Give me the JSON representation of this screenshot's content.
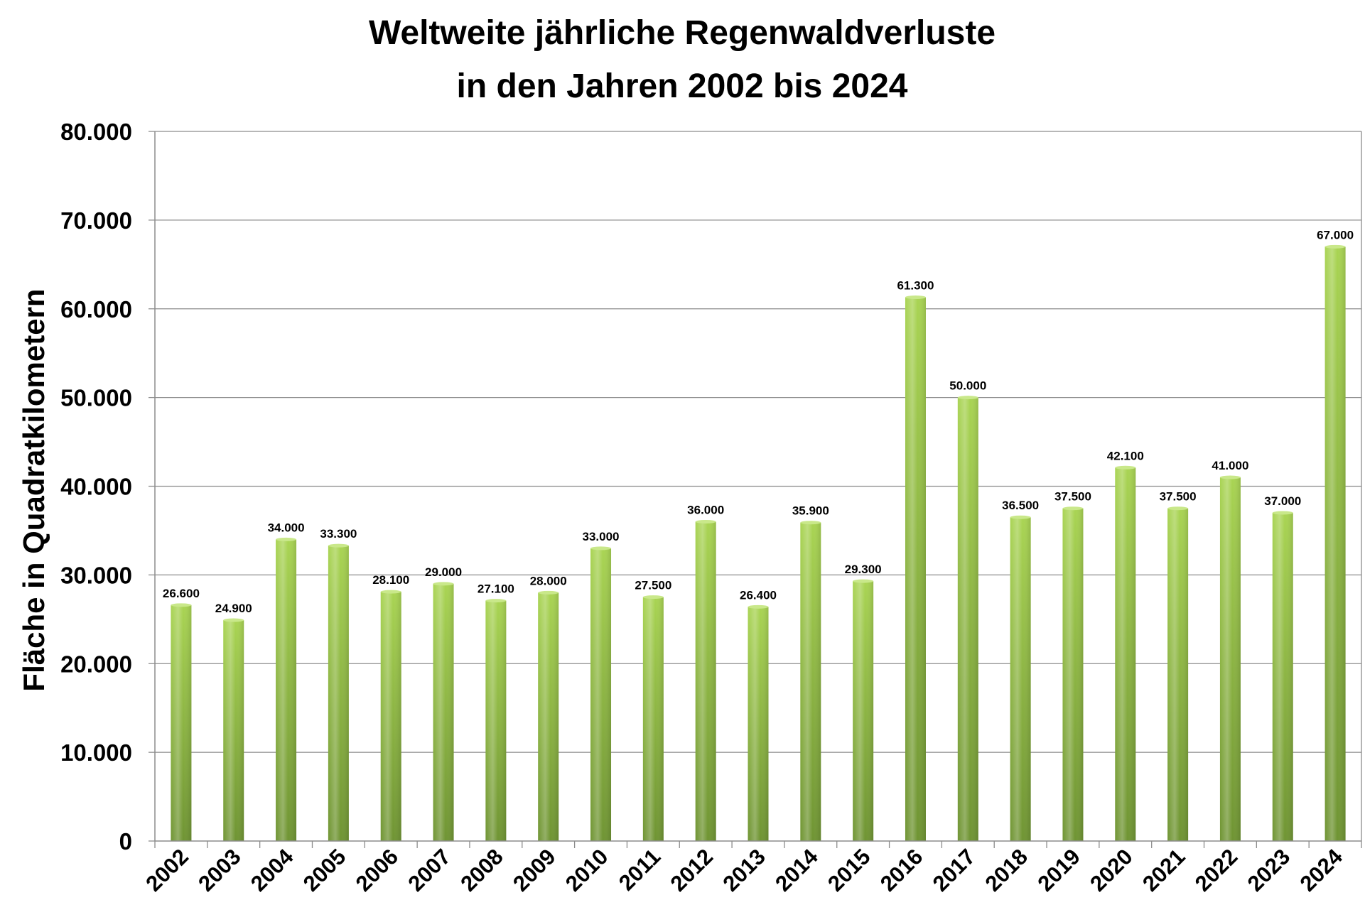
{
  "chart_data": {
    "type": "bar",
    "title": "Weltweite jährliche Regenwaldverluste",
    "subtitle": "in den Jahren 2002 bis 2024",
    "xlabel": "",
    "ylabel": "Fläche in Quadratkilometern",
    "ylim": [
      0,
      80000
    ],
    "yticks": [
      0,
      10000,
      20000,
      30000,
      40000,
      50000,
      60000,
      70000,
      80000
    ],
    "ytick_labels": [
      "0",
      "10.000",
      "20.000",
      "30.000",
      "40.000",
      "50.000",
      "60.000",
      "70.000",
      "80.000"
    ],
    "grid": true,
    "legend": "none",
    "categories": [
      "2002",
      "2003",
      "2004",
      "2005",
      "2006",
      "2007",
      "2008",
      "2009",
      "2010",
      "2011",
      "2012",
      "2013",
      "2014",
      "2015",
      "2016",
      "2017",
      "2018",
      "2019",
      "2020",
      "2021",
      "2022",
      "2023",
      "2024"
    ],
    "values": [
      26600,
      24900,
      34000,
      33300,
      28100,
      29000,
      27100,
      28000,
      33000,
      27500,
      36000,
      26400,
      35900,
      29300,
      61300,
      50000,
      36500,
      37500,
      42100,
      37500,
      41000,
      37000,
      67000
    ],
    "data_labels": [
      "26.600",
      "24.900",
      "34.000",
      "33.300",
      "28.100",
      "29.000",
      "27.100",
      "28.000",
      "33.000",
      "27.500",
      "36.000",
      "26.400",
      "35.900",
      "29.300",
      "61.300",
      "50.000",
      "36.500",
      "37.500",
      "42.100",
      "37.500",
      "41.000",
      "37.000",
      "67.000"
    ],
    "colors": {
      "bar_light": "#a9d453",
      "bar_dark": "#6f9433",
      "bar_top": "#c9e88a",
      "gridline": "#8c8c8c",
      "axis": "#8c8c8c"
    }
  }
}
